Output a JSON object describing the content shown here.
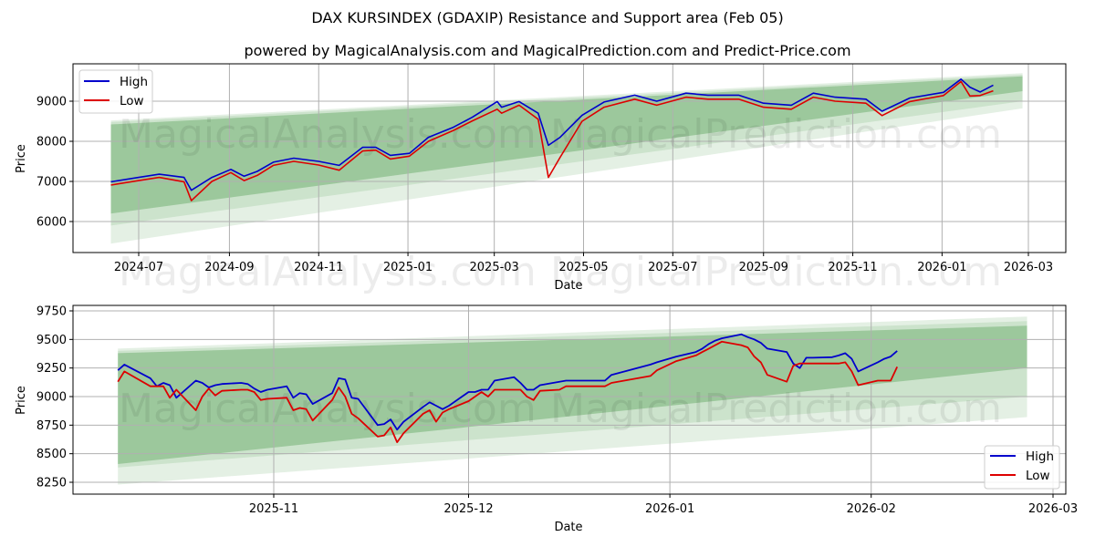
{
  "header": {
    "title": "DAX KURSINDEX (GDAXIP) Resistance and Support area (Feb 05)",
    "subtitle": "powered by MagicalAnalysis.com and MagicalPrediction.com and Predict-Price.com"
  },
  "watermarks": [
    "MagicalAnalysis.com",
    "MagicalPrediction.com"
  ],
  "colors": {
    "high": "#0000cc",
    "low": "#dd0000",
    "band": "#2e8b2e",
    "grid": "#b0b0b0"
  },
  "legend": {
    "high": "High",
    "low": "Low"
  },
  "chart_data": [
    {
      "type": "line",
      "title": "Full history",
      "xlabel": "Date",
      "ylabel": "Price",
      "x_ticks": [
        "2024-07",
        "2024-09",
        "2024-11",
        "2025-01",
        "2025-03",
        "2025-05",
        "2025-07",
        "2025-09",
        "2025-11",
        "2026-01",
        "2026-03"
      ],
      "y_ticks": [
        6000,
        7000,
        8000,
        9000
      ],
      "ylim": [
        5200,
        9950
      ],
      "grid": true,
      "legend_position": "upper left",
      "x": [
        "2024-06-12",
        "2024-07-01",
        "2024-07-15",
        "2024-08-01",
        "2024-08-06",
        "2024-08-20",
        "2024-09-02",
        "2024-09-11",
        "2024-09-20",
        "2024-10-01",
        "2024-10-15",
        "2024-11-01",
        "2024-11-15",
        "2024-12-01",
        "2024-12-10",
        "2024-12-20",
        "2025-01-02",
        "2025-01-15",
        "2025-02-01",
        "2025-02-14",
        "2025-03-03",
        "2025-03-06",
        "2025-03-18",
        "2025-03-31",
        "2025-04-07",
        "2025-04-15",
        "2025-04-30",
        "2025-05-15",
        "2025-06-05",
        "2025-06-20",
        "2025-07-10",
        "2025-07-25",
        "2025-08-15",
        "2025-09-01",
        "2025-09-20",
        "2025-10-05",
        "2025-10-20",
        "2025-11-10",
        "2025-11-21",
        "2025-12-10",
        "2026-01-02",
        "2026-01-14",
        "2026-01-20",
        "2026-01-27",
        "2026-02-05"
      ],
      "series": [
        {
          "name": "High",
          "values": [
            6990,
            7100,
            7180,
            7100,
            6780,
            7100,
            7300,
            7130,
            7250,
            7480,
            7580,
            7500,
            7400,
            7850,
            7850,
            7650,
            7700,
            8100,
            8350,
            8600,
            8990,
            8850,
            8990,
            8700,
            7900,
            8100,
            8650,
            8980,
            9150,
            9000,
            9200,
            9150,
            9150,
            8950,
            8900,
            9200,
            9100,
            9050,
            8750,
            9080,
            9220,
            9550,
            9350,
            9230,
            9400
          ]
        },
        {
          "name": "Low",
          "values": [
            6910,
            7020,
            7100,
            6990,
            6520,
            7000,
            7220,
            7020,
            7150,
            7400,
            7500,
            7410,
            7280,
            7760,
            7780,
            7560,
            7630,
            8000,
            8270,
            8510,
            8800,
            8700,
            8900,
            8550,
            7100,
            7600,
            8500,
            8850,
            9050,
            8900,
            9100,
            9050,
            9050,
            8850,
            8800,
            9100,
            9000,
            8950,
            8640,
            8990,
            9140,
            9490,
            9130,
            9140,
            9260
          ]
        }
      ],
      "bands": [
        {
          "name": "Resistance/Support outer",
          "start": [
            "2024-06-12",
            5450,
            8520
          ],
          "end": [
            "2026-02-25",
            8820,
            9700
          ]
        },
        {
          "name": "Resistance/Support mid",
          "start": [
            "2024-06-12",
            5900,
            8480
          ],
          "end": [
            "2026-02-25",
            9000,
            9660
          ]
        },
        {
          "name": "Resistance/Support inner",
          "start": [
            "2024-06-12",
            6200,
            8420
          ],
          "end": [
            "2026-02-25",
            9250,
            9620
          ]
        }
      ]
    },
    {
      "type": "line",
      "title": "Recent detail",
      "xlabel": "Date",
      "ylabel": "Price",
      "x_ticks": [
        "2025-11",
        "2025-12",
        "2026-01",
        "2026-02",
        "2026-03"
      ],
      "y_ticks": [
        8250,
        8500,
        8750,
        9000,
        9250,
        9500,
        9750
      ],
      "ylim": [
        8150,
        9780
      ],
      "grid": true,
      "legend_position": "lower right",
      "x": [
        "2025-10-08",
        "2025-10-09",
        "2025-10-13",
        "2025-10-14",
        "2025-10-15",
        "2025-10-16",
        "2025-10-17",
        "2025-10-20",
        "2025-10-21",
        "2025-10-22",
        "2025-10-23",
        "2025-10-24",
        "2025-10-27",
        "2025-10-28",
        "2025-10-29",
        "2025-10-30",
        "2025-10-31",
        "2025-11-03",
        "2025-11-04",
        "2025-11-05",
        "2025-11-06",
        "2025-11-07",
        "2025-11-10",
        "2025-11-11",
        "2025-11-12",
        "2025-11-13",
        "2025-11-14",
        "2025-11-17",
        "2025-11-18",
        "2025-11-19",
        "2025-11-20",
        "2025-11-21",
        "2025-11-24",
        "2025-11-25",
        "2025-11-26",
        "2025-11-27",
        "2025-11-28",
        "2025-12-01",
        "2025-12-02",
        "2025-12-03",
        "2025-12-04",
        "2025-12-05",
        "2025-12-08",
        "2025-12-09",
        "2025-12-10",
        "2025-12-11",
        "2025-12-12",
        "2025-12-15",
        "2025-12-16",
        "2025-12-17",
        "2025-12-18",
        "2025-12-19",
        "2025-12-22",
        "2025-12-23",
        "2025-12-29",
        "2025-12-30",
        "2026-01-02",
        "2026-01-05",
        "2026-01-06",
        "2026-01-07",
        "2026-01-08",
        "2026-01-09",
        "2026-01-12",
        "2026-01-13",
        "2026-01-14",
        "2026-01-15",
        "2026-01-16",
        "2026-01-19",
        "2026-01-20",
        "2026-01-21",
        "2026-01-22",
        "2026-01-23",
        "2026-01-26",
        "2026-01-27",
        "2026-01-28",
        "2026-01-29",
        "2026-01-30",
        "2026-02-02",
        "2026-02-03",
        "2026-02-04",
        "2026-02-05"
      ],
      "series": [
        {
          "name": "High",
          "values": [
            9230,
            9280,
            9160,
            9090,
            9120,
            9100,
            8990,
            9140,
            9120,
            9080,
            9100,
            9110,
            9120,
            9110,
            9070,
            9040,
            9060,
            9090,
            8990,
            9030,
            9020,
            8935,
            9030,
            9160,
            9150,
            8990,
            8980,
            8750,
            8760,
            8800,
            8710,
            8780,
            8910,
            8950,
            8920,
            8890,
            8920,
            9040,
            9040,
            9060,
            9060,
            9140,
            9170,
            9120,
            9060,
            9060,
            9100,
            9130,
            9140,
            9140,
            9140,
            9140,
            9140,
            9190,
            9280,
            9300,
            9350,
            9390,
            9420,
            9460,
            9490,
            9510,
            9545,
            9520,
            9500,
            9470,
            9420,
            9390,
            9290,
            9250,
            9340,
            9340,
            9345,
            9360,
            9380,
            9330,
            9220,
            9300,
            9330,
            9350,
            9400
          ]
        },
        {
          "name": "Low",
          "values": [
            9130,
            9220,
            9090,
            9090,
            9090,
            8990,
            9060,
            8880,
            9000,
            9070,
            9010,
            9050,
            9060,
            9060,
            9040,
            8970,
            8980,
            8990,
            8880,
            8900,
            8890,
            8790,
            8970,
            9080,
            9000,
            8850,
            8810,
            8650,
            8660,
            8730,
            8600,
            8680,
            8850,
            8880,
            8780,
            8860,
            8890,
            8960,
            9000,
            9040,
            9000,
            9060,
            9060,
            9060,
            9000,
            8970,
            9050,
            9060,
            9090,
            9090,
            9090,
            9090,
            9090,
            9120,
            9180,
            9230,
            9310,
            9360,
            9390,
            9420,
            9450,
            9480,
            9450,
            9430,
            9350,
            9300,
            9190,
            9130,
            9270,
            9290,
            9290,
            9290,
            9290,
            9290,
            9300,
            9220,
            9100,
            9140,
            9140,
            9140,
            9260
          ]
        }
      ],
      "bands": [
        {
          "name": "Resistance/Support outer",
          "start": [
            "2025-10-08",
            8230,
            9420
          ],
          "end": [
            "2026-02-25",
            8820,
            9700
          ]
        },
        {
          "name": "Resistance/Support mid",
          "start": [
            "2025-10-08",
            8380,
            9400
          ],
          "end": [
            "2026-02-25",
            9000,
            9660
          ]
        },
        {
          "name": "Resistance/Support inner",
          "start": [
            "2025-10-08",
            8410,
            9380
          ],
          "end": [
            "2026-02-25",
            9250,
            9620
          ]
        }
      ]
    }
  ]
}
